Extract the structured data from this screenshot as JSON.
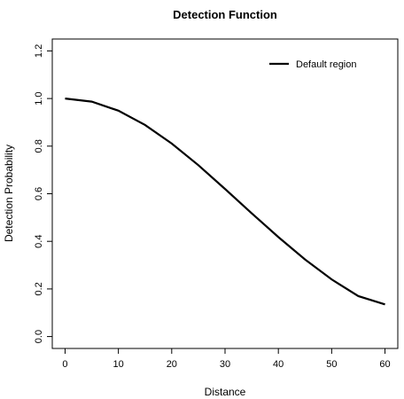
{
  "chart_data": {
    "type": "line",
    "title": "Detection Function",
    "xlabel": "Distance",
    "ylabel": "Detection Probability",
    "xlim": [
      -2.4,
      62.4
    ],
    "ylim": [
      -0.05,
      1.25
    ],
    "x_ticks": [
      0,
      10,
      20,
      30,
      40,
      50,
      60
    ],
    "y_ticks": [
      0.0,
      0.2,
      0.4,
      0.6,
      0.8,
      1.0,
      1.2
    ],
    "y_tick_labels": [
      "0.0",
      "0.2",
      "0.4",
      "0.6",
      "0.8",
      "1.0",
      "1.2"
    ],
    "legend_position": "top-right",
    "grid": false,
    "series": [
      {
        "name": "Default region",
        "color": "#000000",
        "x": [
          0,
          5,
          10,
          15,
          20,
          25,
          30,
          35,
          40,
          45,
          50,
          55,
          60
        ],
        "y": [
          1.0,
          0.987,
          0.949,
          0.889,
          0.811,
          0.72,
          0.62,
          0.518,
          0.418,
          0.324,
          0.24,
          0.17,
          0.135
        ]
      }
    ]
  }
}
